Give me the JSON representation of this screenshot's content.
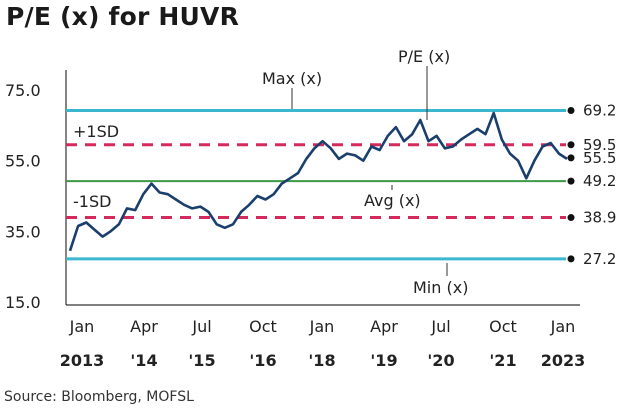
{
  "title": "P/E (x) for HUVR",
  "source": "Source: Bloomberg, MOFSL",
  "chart_data": {
    "type": "line",
    "title": "P/E (x) for HUVR",
    "ylim": [
      15,
      80
    ],
    "yticks": [
      "75.0",
      "55.0",
      "35.0",
      "15.0"
    ],
    "xticks": [
      {
        "m": "Jan",
        "y": "2013"
      },
      {
        "m": "Apr",
        "y": "'14"
      },
      {
        "m": "Jul",
        "y": "'15"
      },
      {
        "m": "Oct",
        "y": "'16"
      },
      {
        "m": "Jan",
        "y": "'18"
      },
      {
        "m": "Apr",
        "y": "'19"
      },
      {
        "m": "Jul",
        "y": "'20"
      },
      {
        "m": "Oct",
        "y": "'21"
      },
      {
        "m": "Jan",
        "y": "2023"
      }
    ],
    "x": [
      "2013-01",
      "2013-03",
      "2013-05",
      "2013-07",
      "2013-09",
      "2013-11",
      "2014-01",
      "2014-03",
      "2014-05",
      "2014-07",
      "2014-09",
      "2014-11",
      "2015-01",
      "2015-03",
      "2015-05",
      "2015-07",
      "2015-09",
      "2015-11",
      "2016-01",
      "2016-03",
      "2016-05",
      "2016-07",
      "2016-09",
      "2016-11",
      "2017-01",
      "2017-03",
      "2017-05",
      "2017-07",
      "2017-09",
      "2017-11",
      "2018-01",
      "2018-03",
      "2018-05",
      "2018-07",
      "2018-09",
      "2018-11",
      "2019-01",
      "2019-03",
      "2019-05",
      "2019-07",
      "2019-09",
      "2019-11",
      "2020-01",
      "2020-03",
      "2020-05",
      "2020-07",
      "2020-09",
      "2020-11",
      "2021-01",
      "2021-03",
      "2021-05",
      "2021-07",
      "2021-09",
      "2021-11",
      "2022-01",
      "2022-03",
      "2022-05",
      "2022-07",
      "2022-09",
      "2022-11",
      "2023-01",
      "2023-03"
    ],
    "series": [
      {
        "name": "P/E (x)",
        "color": "#1a3f6d",
        "values": [
          29.5,
          36.5,
          37.5,
          35.5,
          33.5,
          35.0,
          37.0,
          41.5,
          41.0,
          45.5,
          48.5,
          46.0,
          45.5,
          44.0,
          42.5,
          41.5,
          42.0,
          40.5,
          37.0,
          36.0,
          37.0,
          40.5,
          42.5,
          45.0,
          44.0,
          45.5,
          48.5,
          50.0,
          51.5,
          55.5,
          58.5,
          60.5,
          58.5,
          55.5,
          57.0,
          56.5,
          55.0,
          59.0,
          58.0,
          62.0,
          64.5,
          60.5,
          62.5,
          66.5,
          60.5,
          62.0,
          58.5,
          59.0,
          61.0,
          62.5,
          64.0,
          62.5,
          68.5,
          61.0,
          57.0,
          55.0,
          50.0,
          55.0,
          59.0,
          60.0,
          57.0,
          55.5
        ]
      }
    ],
    "reference_lines": [
      {
        "name": "Max (x)",
        "value": 69.2,
        "label": "69.2",
        "color": "#3bb8cf",
        "style": "solid"
      },
      {
        "name": "+1SD",
        "value": 59.5,
        "label": "59.5",
        "color": "#d42a5b",
        "style": "dashed"
      },
      {
        "name": "Avg (x)",
        "value": 49.2,
        "label": "49.2",
        "color": "#3c9a45",
        "style": "solid"
      },
      {
        "name": "-1SD",
        "value": 38.9,
        "label": "38.9",
        "color": "#d42a5b",
        "style": "dashed"
      },
      {
        "name": "Min (x)",
        "value": 27.2,
        "label": "27.2",
        "color": "#3bb8cf",
        "style": "solid"
      }
    ],
    "end_value": {
      "label": "55.5",
      "value": 55.5
    },
    "annotations": {
      "series": "P/E (x)",
      "max": "Max (x)",
      "plus_sd": "+1SD",
      "avg": "Avg (x)",
      "minus_sd": "-1SD",
      "min": "Min (x)"
    },
    "grid": false,
    "legend": "none"
  }
}
